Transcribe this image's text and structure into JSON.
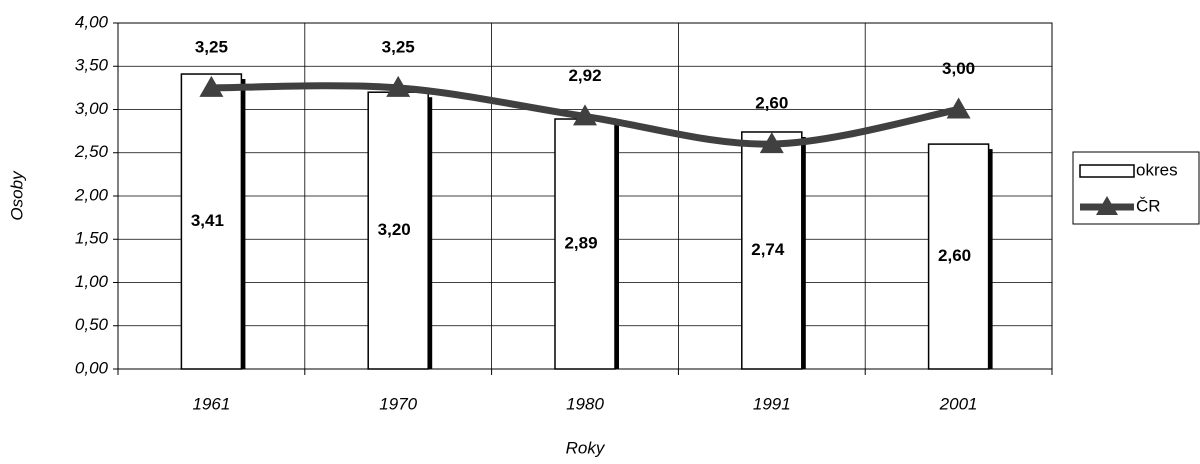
{
  "chart_data": {
    "type": "combo",
    "x_label": "Roky",
    "y_label": "Osoby",
    "categories": [
      "1961",
      "1970",
      "1980",
      "1991",
      "2001"
    ],
    "series": [
      {
        "name": "okres",
        "type": "bar",
        "color": "#ffffff",
        "values": [
          3.41,
          3.2,
          2.89,
          2.74,
          2.6
        ],
        "value_labels": [
          "3,41",
          "3,20",
          "2,89",
          "2,74",
          "2,60"
        ]
      },
      {
        "name": "ČR",
        "type": "line",
        "color": "#404040",
        "values": [
          3.25,
          3.25,
          2.92,
          2.6,
          3.0
        ],
        "value_labels": [
          "3,25",
          "3,25",
          "2,92",
          "2,60",
          "3,00"
        ]
      }
    ],
    "ylim": [
      0,
      4
    ],
    "yticks": [
      {
        "value": 0,
        "label": "0,00"
      },
      {
        "value": 0.5,
        "label": "0,50"
      },
      {
        "value": 1,
        "label": "1,00"
      },
      {
        "value": 1.5,
        "label": "1,50"
      },
      {
        "value": 2,
        "label": "2,00"
      },
      {
        "value": 2.5,
        "label": "2,50"
      },
      {
        "value": 3,
        "label": "3,00"
      },
      {
        "value": 3.5,
        "label": "3,50"
      },
      {
        "value": 4,
        "label": "4,00"
      }
    ],
    "grid": true,
    "legend": "right"
  }
}
